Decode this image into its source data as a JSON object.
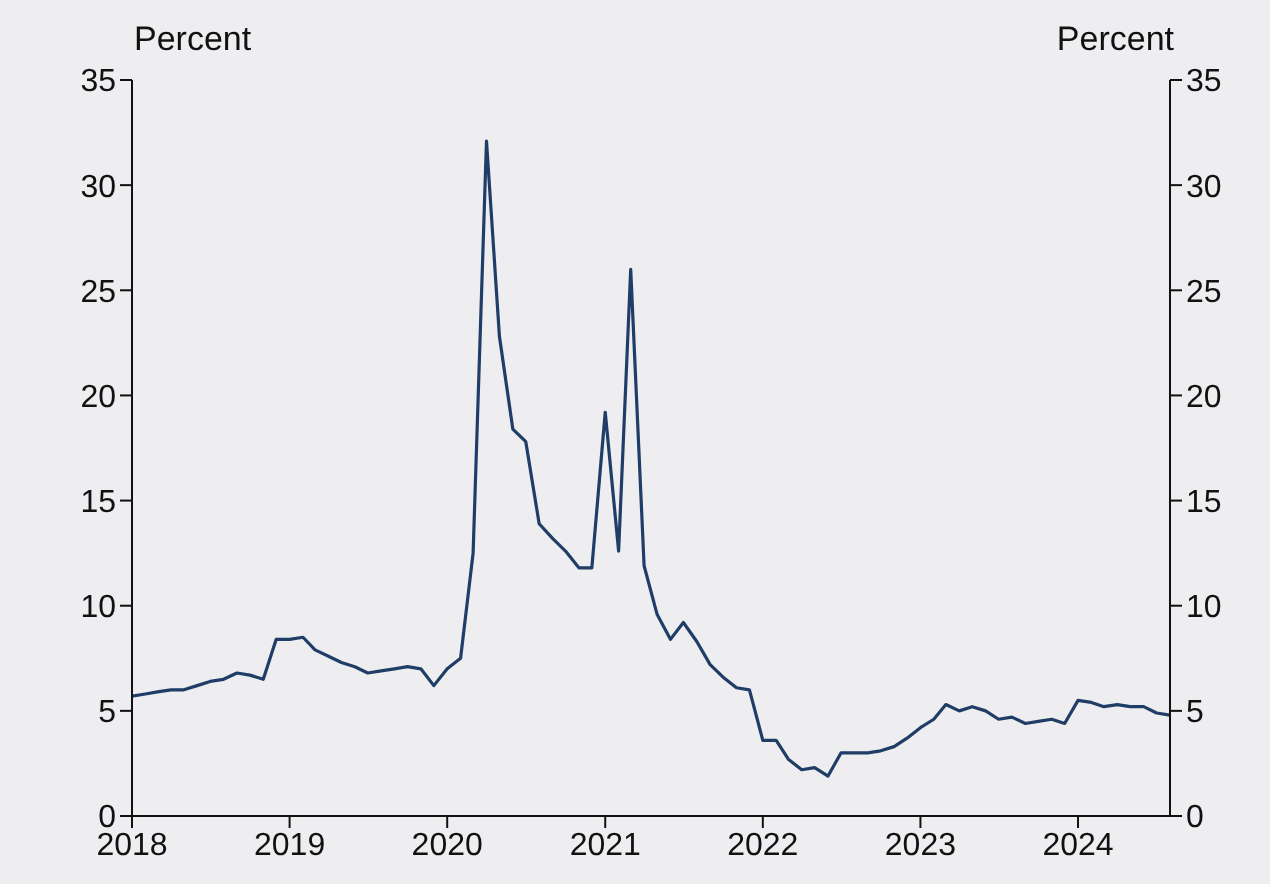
{
  "chart_data": {
    "type": "line",
    "ylabel": "Percent",
    "y2label": "Percent",
    "x": [
      "2018-01",
      "2018-02",
      "2018-03",
      "2018-04",
      "2018-05",
      "2018-06",
      "2018-07",
      "2018-08",
      "2018-09",
      "2018-10",
      "2018-11",
      "2018-12",
      "2019-01",
      "2019-02",
      "2019-03",
      "2019-04",
      "2019-05",
      "2019-06",
      "2019-07",
      "2019-08",
      "2019-09",
      "2019-10",
      "2019-11",
      "2019-12",
      "2020-01",
      "2020-02",
      "2020-03",
      "2020-04",
      "2020-05",
      "2020-06",
      "2020-07",
      "2020-08",
      "2020-09",
      "2020-10",
      "2020-11",
      "2020-12",
      "2021-01",
      "2021-02",
      "2021-03",
      "2021-04",
      "2021-05",
      "2021-06",
      "2021-07",
      "2021-08",
      "2021-09",
      "2021-10",
      "2021-11",
      "2021-12",
      "2022-01",
      "2022-02",
      "2022-03",
      "2022-04",
      "2022-05",
      "2022-06",
      "2022-07",
      "2022-08",
      "2022-09",
      "2022-10",
      "2022-11",
      "2022-12",
      "2023-01",
      "2023-02",
      "2023-03",
      "2023-04",
      "2023-05",
      "2023-06",
      "2023-07",
      "2023-08",
      "2023-09",
      "2023-10",
      "2023-11",
      "2023-12",
      "2024-01",
      "2024-02",
      "2024-03",
      "2024-04",
      "2024-05",
      "2024-06",
      "2024-07",
      "2024-08"
    ],
    "series": [
      {
        "color": "#1f3d66",
        "values": [
          5.7,
          5.8,
          5.9,
          6.0,
          6.0,
          6.2,
          6.4,
          6.5,
          6.8,
          6.7,
          6.5,
          8.4,
          8.4,
          8.5,
          7.9,
          7.6,
          7.3,
          7.1,
          6.8,
          6.9,
          7.0,
          7.1,
          7.0,
          6.2,
          7.0,
          7.5,
          12.5,
          32.1,
          22.8,
          18.4,
          17.8,
          13.9,
          13.2,
          12.6,
          11.8,
          11.8,
          19.2,
          12.6,
          26.0,
          11.9,
          9.6,
          8.4,
          9.2,
          8.3,
          7.2,
          6.6,
          6.1,
          6.0,
          3.6,
          3.6,
          2.7,
          2.2,
          2.3,
          1.9,
          3.0,
          3.0,
          3.0,
          3.1,
          3.3,
          3.7,
          4.2,
          4.6,
          5.3,
          5.0,
          5.2,
          5.0,
          4.6,
          4.7,
          4.4,
          4.5,
          4.6,
          4.4,
          5.5,
          5.4,
          5.2,
          5.3,
          5.2,
          5.2,
          4.9,
          4.8
        ]
      }
    ],
    "xlim": [
      "2018-01",
      "2024-08"
    ],
    "xticks": [
      {
        "value": "2018-01",
        "label": "2018"
      },
      {
        "value": "2019-01",
        "label": "2019"
      },
      {
        "value": "2020-01",
        "label": "2020"
      },
      {
        "value": "2021-01",
        "label": "2021"
      },
      {
        "value": "2022-01",
        "label": "2022"
      },
      {
        "value": "2023-01",
        "label": "2023"
      },
      {
        "value": "2024-01",
        "label": "2024"
      }
    ],
    "ylim": [
      0,
      35
    ],
    "yticks": [
      0,
      5,
      10,
      15,
      20,
      25,
      30,
      35
    ],
    "y2lim": [
      0,
      35
    ],
    "y2ticks": [
      0,
      5,
      10,
      15,
      20,
      25,
      30,
      35
    ],
    "grid": false,
    "legend": false,
    "marker": "none",
    "line_style": "solid"
  }
}
